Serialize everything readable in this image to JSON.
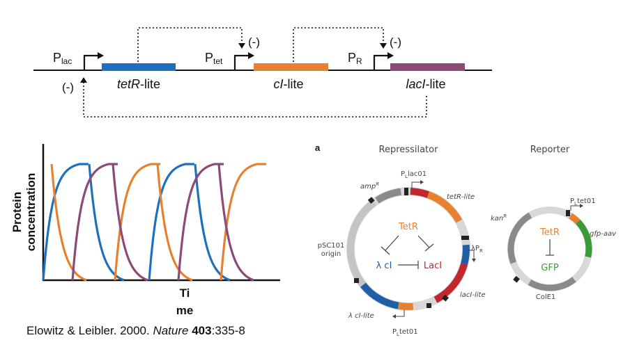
{
  "circuit": {
    "promoters": [
      {
        "main": "P",
        "sub": "lac"
      },
      {
        "main": "P",
        "sub": "tet"
      },
      {
        "main": "P",
        "sub": "R"
      }
    ],
    "genes": [
      {
        "name_italic": "tetR",
        "suffix": "-lite",
        "color": "#1f6fbf"
      },
      {
        "name_italic": "cI",
        "suffix": "-lite",
        "color": "#e8812f"
      },
      {
        "name_italic": "lacI",
        "suffix": "-lite",
        "color": "#8c4a76"
      }
    ],
    "repression_marks": [
      "(-)",
      "(-)",
      "(-)"
    ]
  },
  "chart_data": {
    "type": "line",
    "xlabel_line1": "Ti",
    "xlabel_line2": "me",
    "ylabel_line1": "Protein",
    "ylabel_line2": "concentration",
    "series": [
      {
        "color": "#1f6fbf"
      },
      {
        "color": "#e8812f"
      },
      {
        "color": "#8c4a76"
      }
    ]
  },
  "repressilator": {
    "panel_letter": "a",
    "title": "Repressilator",
    "labels": {
      "amp": "amp",
      "amp_sup": "R",
      "plac_main": "P",
      "plac_sub": "L",
      "plac_rest": "lac01",
      "tetr_lite": "tetR-lite",
      "psc101_1": "pSC101",
      "psc101_2": "origin",
      "lambda_pr_main": "λP",
      "lambda_pr_sub": "R",
      "laci_lite": "lacI-lite",
      "lambda_ci_lite": "λ cI-lite",
      "ptet_main": "P",
      "ptet_sub": "L",
      "ptet_rest": "tet01"
    },
    "proteins": {
      "tetr": "TetR",
      "lambda_ci": "λ cI",
      "laci": "LacI"
    },
    "colors": {
      "tetr": "#e8812f",
      "ci": "#1f5fa8",
      "laci": "#c0282d"
    }
  },
  "reporter": {
    "title": "Reporter",
    "labels": {
      "kan": "kan",
      "kan_sup": "R",
      "ptet_main": "P",
      "ptet_sub": "L",
      "ptet_rest": "tet01",
      "gfp_aav": "gfp-aav",
      "cole1": "ColE1"
    },
    "proteins": {
      "tetr": "TetR",
      "gfp": "GFP"
    },
    "colors": {
      "tetr": "#e8812f",
      "gfp": "#3a9a3a"
    }
  },
  "citation": {
    "authors": "Elowitz & Leibler. 2000. ",
    "journal": "Nature",
    "volume": "403",
    "pages": ":335-8"
  }
}
